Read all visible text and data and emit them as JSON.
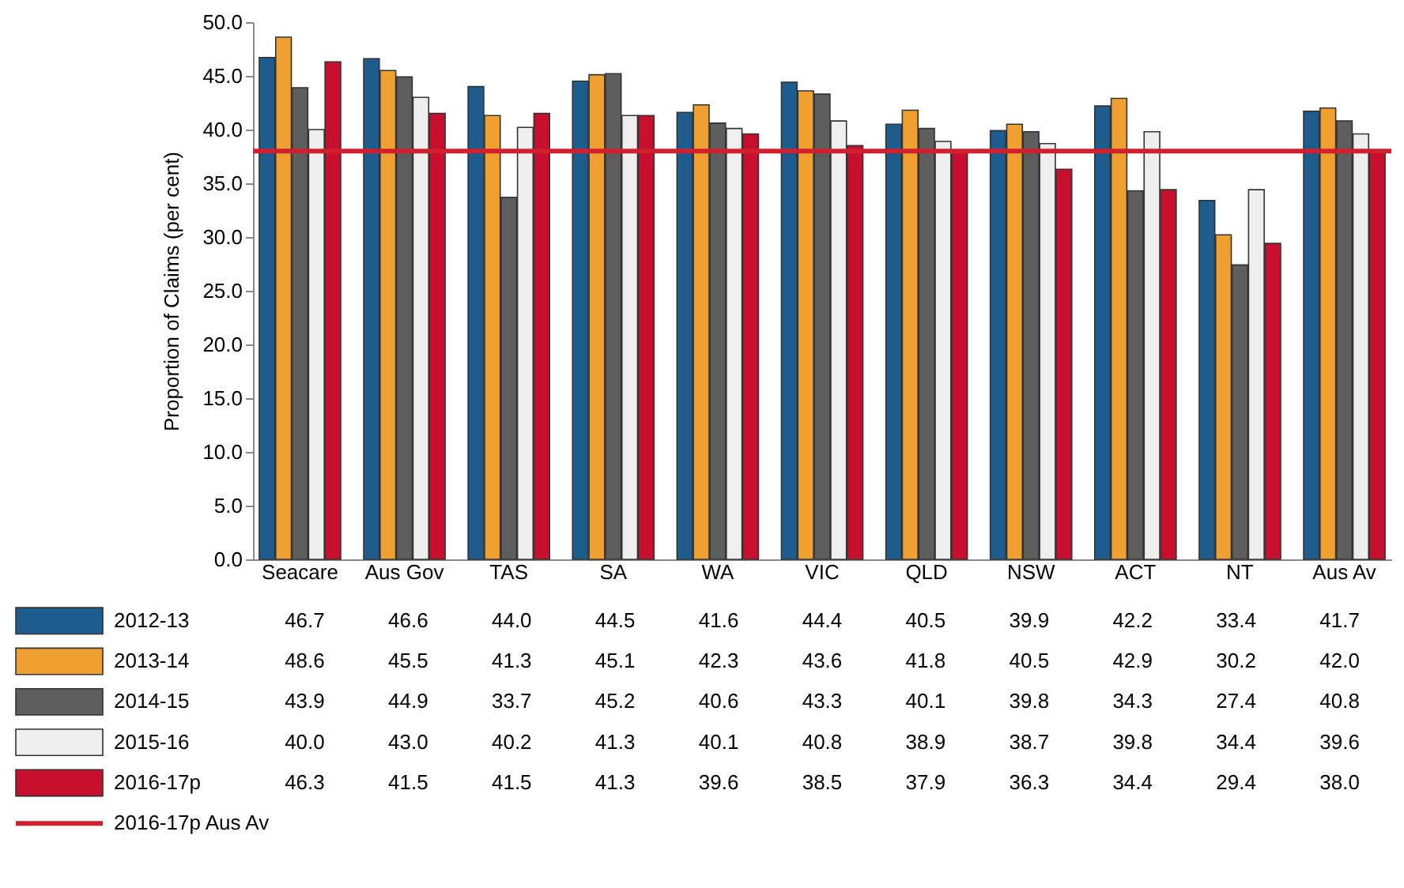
{
  "chart_data": {
    "type": "bar",
    "ylabel": "Proportion of Claims (per cent)",
    "categories": [
      "Seacare",
      "Aus Gov",
      "TAS",
      "SA",
      "WA",
      "VIC",
      "QLD",
      "NSW",
      "ACT",
      "NT",
      "Aus Av"
    ],
    "series": [
      {
        "name": "2012-13",
        "color": "#1d5c8c",
        "values": [
          46.7,
          46.6,
          44.0,
          44.5,
          41.6,
          44.4,
          40.5,
          39.9,
          42.2,
          33.4,
          41.7
        ],
        "value_labels": [
          "46.7",
          "46.6",
          "44.0",
          "44.5",
          "41.6",
          "44.4",
          "40.5",
          "39.9",
          "42.2",
          "33.4",
          "41.7"
        ]
      },
      {
        "name": "2013-14",
        "color": "#f0a030",
        "values": [
          48.6,
          45.5,
          41.3,
          45.1,
          42.3,
          43.6,
          41.8,
          40.5,
          42.9,
          30.2,
          42.0
        ],
        "value_labels": [
          "48.6",
          "45.5",
          "41.3",
          "45.1",
          "42.3",
          "43.6",
          "41.8",
          "40.5",
          "42.9",
          "30.2",
          "42.0"
        ]
      },
      {
        "name": "2014-15",
        "color": "#5e5e5e",
        "values": [
          43.9,
          44.9,
          33.7,
          45.2,
          40.6,
          43.3,
          40.1,
          39.8,
          34.3,
          27.4,
          40.8
        ],
        "value_labels": [
          "43.9",
          "44.9",
          "33.7",
          "45.2",
          "40.6",
          "43.3",
          "40.1",
          "39.8",
          "34.3",
          "27.4",
          "40.8"
        ]
      },
      {
        "name": "2015-16",
        "color": "#eeeeee",
        "values": [
          40.0,
          43.0,
          40.2,
          41.3,
          40.1,
          40.8,
          38.9,
          38.7,
          39.8,
          34.4,
          39.6
        ],
        "value_labels": [
          "40.0",
          "43.0",
          "40.2",
          "41.3",
          "40.1",
          "40.8",
          "38.9",
          "38.7",
          "39.8",
          "34.4",
          "39.6"
        ]
      },
      {
        "name": "2016-17p",
        "color": "#c8102e",
        "values": [
          46.3,
          41.5,
          41.5,
          41.3,
          39.6,
          38.5,
          37.9,
          36.3,
          34.4,
          29.4,
          38.0
        ],
        "value_labels": [
          "46.3",
          "41.5",
          "41.5",
          "41.3",
          "39.6",
          "38.5",
          "37.9",
          "36.3",
          "34.4",
          "29.4",
          "38.0"
        ]
      }
    ],
    "ylim": [
      0,
      50
    ],
    "yticks": [
      {
        "value": 0,
        "label": "0.0"
      },
      {
        "value": 5,
        "label": "5.0"
      },
      {
        "value": 10,
        "label": "10.0"
      },
      {
        "value": 15,
        "label": "15.0"
      },
      {
        "value": 20,
        "label": "20.0"
      },
      {
        "value": 25,
        "label": "25.0"
      },
      {
        "value": 30,
        "label": "30.0"
      },
      {
        "value": 35,
        "label": "35.0"
      },
      {
        "value": 40,
        "label": "40.0"
      },
      {
        "value": 45,
        "label": "45.0"
      },
      {
        "value": 50,
        "label": "50.0"
      }
    ],
    "ref_lines": [
      {
        "axis": "y",
        "value": 38.0,
        "label": "2016-17p Aus Av",
        "color": "#d0202e"
      }
    ],
    "legend": "bottom",
    "grid": false
  }
}
